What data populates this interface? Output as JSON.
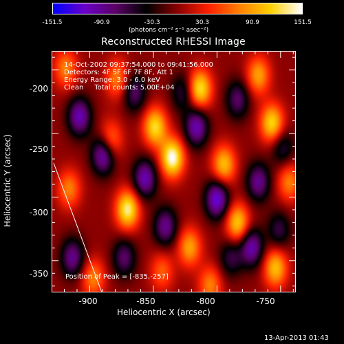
{
  "colorbar": {
    "ticks": [
      "-151.5",
      "-90.9",
      "-30.3",
      "30.3",
      "90.9",
      "151.5"
    ],
    "units_label": "(photons cm⁻² s⁻¹ asec⁻²)",
    "colors": [
      "#0000ff",
      "#6a00c8",
      "#5a0066",
      "#000000",
      "#8b0000",
      "#ff2000",
      "#ff8000",
      "#ffd000",
      "#ffffff"
    ]
  },
  "title": "Reconstructed RHESSI Image",
  "info": {
    "line1": "14-Oct-2002 09:37:54.000 to 09:41:56.000",
    "line2": "Detectors: 4F 5F 6F 7F 8F, Att 1",
    "line3": "Energy Range: 3.0 - 6.0 keV",
    "line4": "Clean     Total counts: 5.00E+04",
    "peak": "Position of Peak = [-835,-257]"
  },
  "axes": {
    "xlabel": "Heliocentric X (arcsec)",
    "ylabel": "Heliocentric Y (arcsec)",
    "xticks": [
      "-900",
      "-850",
      "-800",
      "-750"
    ],
    "yticks": [
      "-200",
      "-250",
      "-300",
      "-350"
    ],
    "xrange": [
      -930,
      -738
    ],
    "yrange": [
      -185,
      -375
    ]
  },
  "footer": "13-Apr-2013 01:43"
}
